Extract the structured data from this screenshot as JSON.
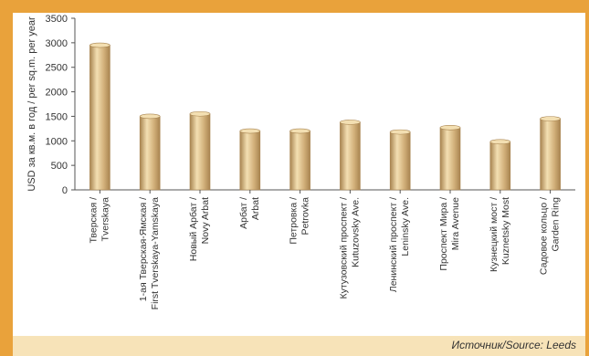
{
  "chart_data": {
    "type": "bar",
    "ylabel": "USD за кв.м. в год / per sq.m. per year",
    "ylim": [
      0,
      3500
    ],
    "yticks": [
      0,
      500,
      1000,
      1500,
      2000,
      2500,
      3000,
      3500
    ],
    "categories": [
      [
        "Тверская /",
        "Tverskaya"
      ],
      [
        "1-ая Тверская-Ямская /",
        "First Tverskaya-Yamskaya"
      ],
      [
        "Новый Арбат /",
        "Novy Arbat"
      ],
      [
        "Арбат /",
        "Arbat"
      ],
      [
        "Петровка /",
        "Petrovka"
      ],
      [
        "Кутузовский проспект /",
        "Kutuzovsky Ave."
      ],
      [
        "Ленинский проспект /",
        "Leninsky Ave."
      ],
      [
        "Проспект Мира /",
        "Mira Avenue"
      ],
      [
        "Кузнецкий мост /",
        "Kuznetsky Most"
      ],
      [
        "Садовое кольцо /",
        "Garden Ring"
      ]
    ],
    "values": [
      2950,
      1500,
      1550,
      1200,
      1200,
      1380,
      1180,
      1270,
      980,
      1450
    ],
    "bar_color": "#d2b07a",
    "bar_highlight": "#f3dfb2",
    "bar_shadow": "#a88450",
    "grid": false
  },
  "source": "Источник/Source: Leeds"
}
